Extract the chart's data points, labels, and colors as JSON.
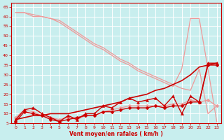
{
  "xlabel": "Vent moyen/en rafales ( km/h )",
  "xlim": [
    -0.5,
    23.5
  ],
  "ylim": [
    5,
    67
  ],
  "yticks": [
    5,
    10,
    15,
    20,
    25,
    30,
    35,
    40,
    45,
    50,
    55,
    60,
    65
  ],
  "xticks": [
    0,
    1,
    2,
    3,
    4,
    5,
    6,
    7,
    8,
    9,
    10,
    11,
    12,
    13,
    14,
    15,
    16,
    17,
    18,
    19,
    20,
    21,
    22,
    23
  ],
  "bg_color": "#c8eeee",
  "grid_color": "#aadddd",
  "series": [
    {
      "x": [
        0,
        1,
        2,
        3,
        4,
        5,
        6,
        7,
        8,
        9,
        10,
        11,
        12,
        13,
        14,
        15,
        16,
        17,
        18,
        19,
        20,
        21,
        22,
        23
      ],
      "y": [
        62,
        62,
        60,
        60,
        59,
        58,
        55,
        52,
        49,
        46,
        44,
        41,
        38,
        36,
        33,
        31,
        29,
        27,
        25,
        23,
        22,
        33,
        10,
        14
      ],
      "color": "#ee9999",
      "marker": null,
      "ms": 0,
      "lw": 0.9,
      "zorder": 2
    },
    {
      "x": [
        0,
        1,
        2,
        3,
        4,
        5,
        6,
        7,
        8,
        9,
        10,
        11,
        12,
        13,
        14,
        15,
        16,
        17,
        18,
        19,
        20,
        21,
        22,
        23
      ],
      "y": [
        8,
        12,
        11,
        9,
        8,
        7,
        8,
        7,
        9,
        9,
        11,
        12,
        13,
        14,
        14,
        14,
        14,
        14,
        15,
        15,
        17,
        16,
        17,
        14
      ],
      "color": "#ee9999",
      "marker": "D",
      "ms": 2.5,
      "lw": 0.9,
      "zorder": 2
    },
    {
      "x": [
        0,
        1,
        2,
        3,
        4,
        5,
        6,
        7,
        8,
        9,
        10,
        11,
        12,
        13,
        14,
        15,
        16,
        17,
        18,
        19,
        20,
        21,
        22,
        23
      ],
      "y": [
        62,
        62,
        61,
        60,
        59,
        57,
        54,
        51,
        48,
        45,
        43,
        40,
        37,
        35,
        32,
        30,
        28,
        26,
        24,
        33,
        59,
        59,
        33,
        6
      ],
      "color": "#ee9999",
      "marker": null,
      "ms": 0,
      "lw": 0.9,
      "zorder": 2
    },
    {
      "x": [
        0,
        1,
        2,
        3,
        4,
        5,
        6,
        7,
        8,
        9,
        10,
        11,
        12,
        13,
        14,
        15,
        16,
        17,
        18,
        19,
        20,
        21,
        22,
        23
      ],
      "y": [
        7,
        8,
        9,
        9,
        10,
        10,
        10,
        11,
        12,
        13,
        14,
        15,
        16,
        18,
        19,
        20,
        22,
        23,
        25,
        27,
        30,
        34,
        35,
        36
      ],
      "color": "#cc0000",
      "marker": null,
      "ms": 0,
      "lw": 1.2,
      "zorder": 3
    },
    {
      "x": [
        0,
        1,
        2,
        3,
        4,
        5,
        6,
        7,
        8,
        9,
        10,
        11,
        12,
        13,
        14,
        15,
        16,
        17,
        18,
        19,
        20,
        21,
        22,
        23
      ],
      "y": [
        7,
        12,
        13,
        10,
        8,
        6,
        9,
        7,
        10,
        10,
        14,
        13,
        16,
        18,
        16,
        17,
        18,
        14,
        19,
        10,
        19,
        16,
        36,
        36
      ],
      "color": "#cc0000",
      "marker": "^",
      "ms": 3,
      "lw": 1.0,
      "zorder": 4
    },
    {
      "x": [
        0,
        1,
        2,
        3,
        4,
        5,
        6,
        7,
        8,
        9,
        10,
        11,
        12,
        13,
        14,
        15,
        16,
        17,
        18,
        19,
        20,
        21,
        22,
        23
      ],
      "y": [
        6,
        11,
        10,
        9,
        7,
        6,
        7,
        8,
        9,
        9,
        11,
        11,
        12,
        13,
        13,
        13,
        14,
        13,
        14,
        14,
        16,
        16,
        35,
        35
      ],
      "color": "#cc0000",
      "marker": "D",
      "ms": 2.5,
      "lw": 1.0,
      "zorder": 4
    }
  ]
}
